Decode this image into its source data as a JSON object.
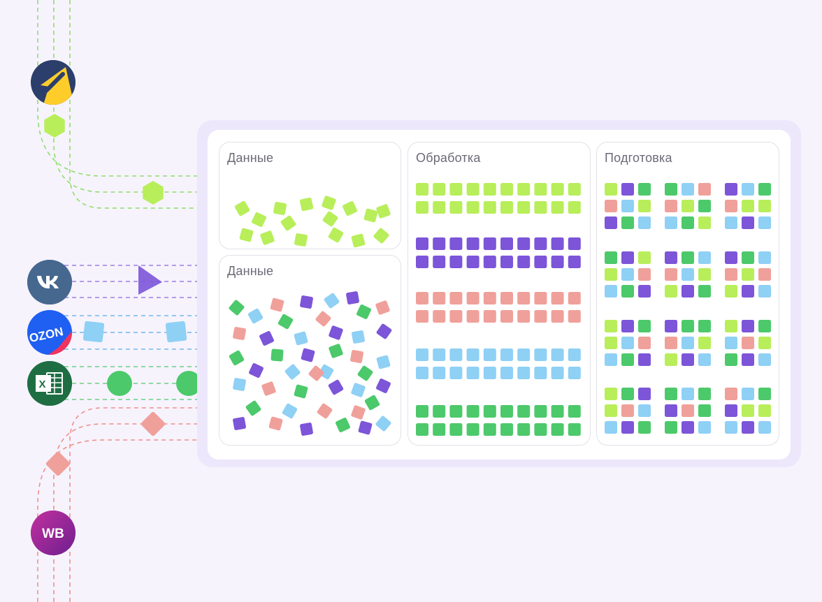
{
  "colors": {
    "lime": "#b8ee5a",
    "green": "#4cc96a",
    "purple": "#7c55d8",
    "pink": "#f0a09a",
    "blue": "#8fd0f5",
    "yandex_bg": "#2c3e6b",
    "yandex_arrow": "#ffcd2a",
    "vk_bg": "#46688f",
    "ozon_bg": "#1f5ff2",
    "ozon_red": "#f1335e",
    "excel_bg": "#1f6e43",
    "wb_bg": "#a52a9b"
  },
  "sources": [
    {
      "name": "yandex-market",
      "icon": "yandex-market-icon",
      "label": ""
    },
    {
      "name": "vk",
      "icon": "vk-icon",
      "label": ""
    },
    {
      "name": "ozon",
      "icon": "ozon-icon",
      "label": "OZON"
    },
    {
      "name": "excel",
      "icon": "excel-icon",
      "label": "X"
    },
    {
      "name": "wildberries",
      "icon": "wildberries-icon",
      "label": "WB"
    }
  ],
  "panels": {
    "data_top": {
      "title": "Данные"
    },
    "data_bottom": {
      "title": "Данные"
    },
    "processing": {
      "title": "Обработка"
    },
    "preparation": {
      "title": "Подготовка"
    }
  }
}
